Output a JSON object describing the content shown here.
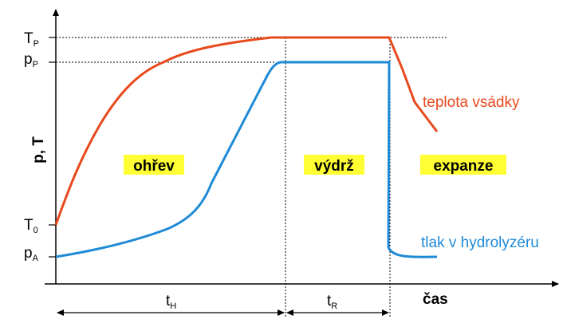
{
  "axes": {
    "y_label": "p, T",
    "x_label": "čas"
  },
  "y_ticks": {
    "t_p": {
      "main": "T",
      "sub": "P"
    },
    "p_p": {
      "main": "p",
      "sub": "P"
    },
    "t_0": {
      "main": "T",
      "sub": "0"
    },
    "p_a": {
      "main": "p",
      "sub": "A"
    }
  },
  "phases": {
    "heating": "ohřev",
    "holding": "výdrž",
    "expansion": "expanze"
  },
  "intervals": {
    "t_h": {
      "main": "t",
      "sub": "H"
    },
    "t_r": {
      "main": "t",
      "sub": "R"
    }
  },
  "curves": {
    "temperature": {
      "label": "teplota vsádky",
      "color": "#e8491d"
    },
    "pressure": {
      "label": "tlak v hydrolyzéru",
      "color": "#1f8ad6"
    }
  },
  "colors": {
    "highlight": "#ffff33",
    "axis": "#000000"
  }
}
